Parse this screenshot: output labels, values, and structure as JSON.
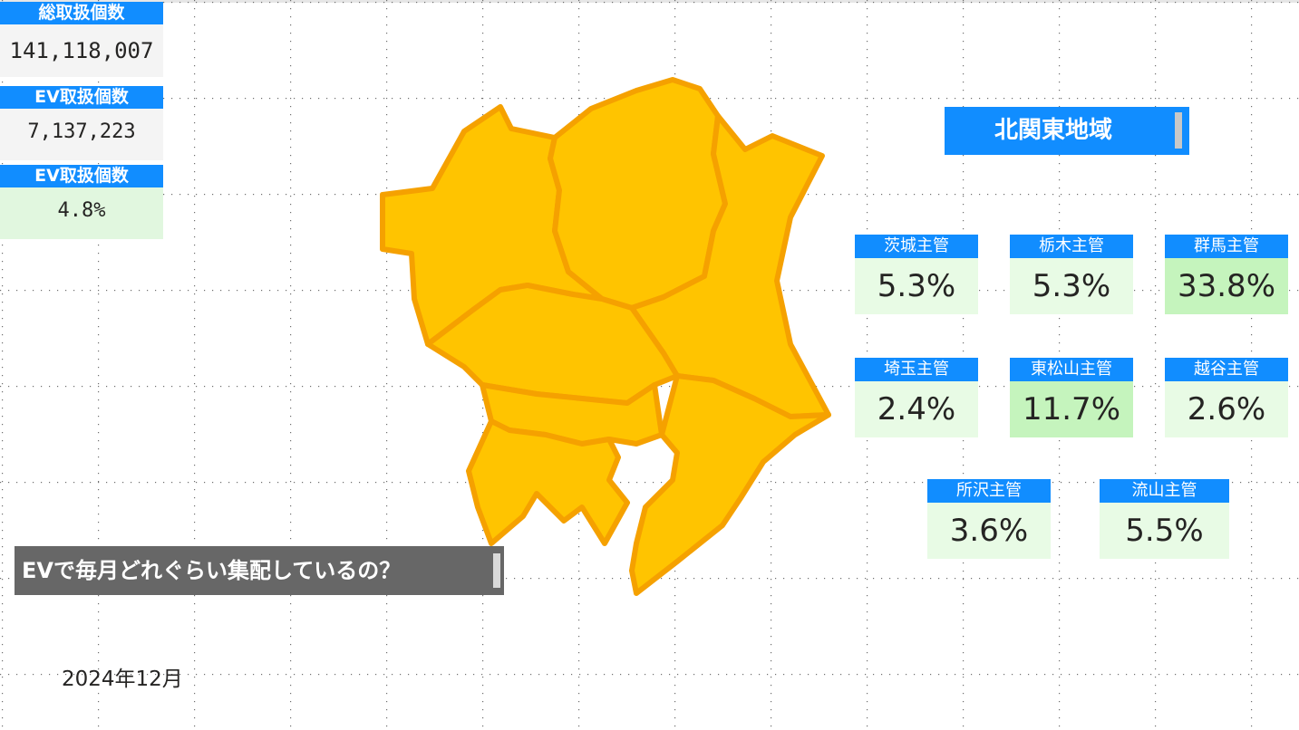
{
  "kpis": [
    {
      "label": "総取扱個数",
      "value": "141,118,007"
    },
    {
      "label": "EV取扱個数",
      "value": "7,137,223"
    },
    {
      "label": "EV取扱個数",
      "value": "4.8%"
    }
  ],
  "region": {
    "title": "北関東地域"
  },
  "offices": [
    {
      "name": "茨城主管",
      "value": "5.3%"
    },
    {
      "name": "栃木主管",
      "value": "5.3%"
    },
    {
      "name": "群馬主管",
      "value": "33.8%"
    },
    {
      "name": "埼玉主管",
      "value": "2.4%"
    },
    {
      "name": "東松山主管",
      "value": "11.7%"
    },
    {
      "name": "越谷主管",
      "value": "2.6%"
    },
    {
      "name": "所沢主管",
      "value": "3.6%"
    },
    {
      "name": "流山主管",
      "value": "5.5%"
    }
  ],
  "question": "EVで毎月どれぐらい集配しているの？",
  "date": "2024年12月",
  "colors": {
    "header_blue": "#118dff",
    "map_fill": "#ffc400",
    "map_stroke": "#f5a100",
    "tile_green": "#e8fbe5",
    "tile_highlight": "#c5f4bd"
  }
}
